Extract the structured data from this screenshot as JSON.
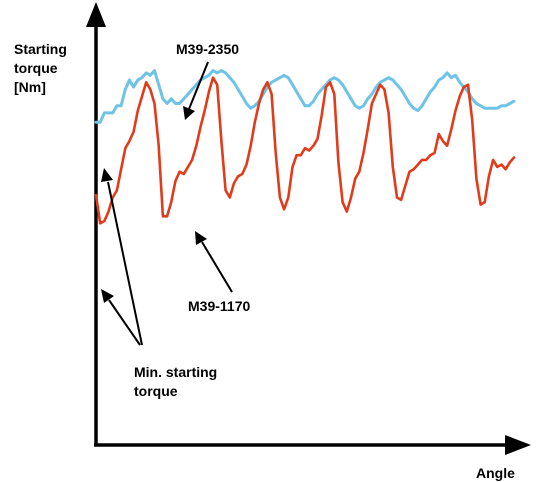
{
  "chart_data": {
    "type": "line",
    "title": "",
    "ylabel": [
      "Starting",
      "torque",
      "[Nm]"
    ],
    "xlabel": "Angle",
    "x_ticks": "none",
    "y_ticks": "none",
    "grid": false,
    "legend": "none",
    "xlim": [
      0,
      100
    ],
    "ylim": [
      0,
      100
    ],
    "series": [
      {
        "name": "M39-2350",
        "color": "#6ec3e6",
        "points": [
          [
            0,
            82
          ],
          [
            1,
            82
          ],
          [
            2,
            86
          ],
          [
            4,
            86
          ],
          [
            5,
            89
          ],
          [
            6,
            89
          ],
          [
            7,
            96
          ],
          [
            8,
            100
          ],
          [
            9,
            97
          ],
          [
            10,
            100
          ],
          [
            11,
            101
          ],
          [
            12,
            103
          ],
          [
            13,
            102
          ],
          [
            14,
            104
          ],
          [
            15,
            98
          ],
          [
            16,
            92
          ],
          [
            17,
            90
          ],
          [
            18,
            92
          ],
          [
            19,
            90
          ],
          [
            20,
            90
          ],
          [
            21,
            92
          ],
          [
            22,
            94
          ],
          [
            23,
            96
          ],
          [
            24,
            98
          ],
          [
            25,
            100
          ],
          [
            26,
            101
          ],
          [
            27,
            102
          ],
          [
            28,
            104
          ],
          [
            29,
            103
          ],
          [
            30,
            104
          ],
          [
            31,
            103
          ],
          [
            32,
            101
          ],
          [
            33,
            99
          ],
          [
            34,
            96
          ],
          [
            35,
            93
          ],
          [
            36,
            90
          ],
          [
            37,
            88
          ],
          [
            38,
            89
          ],
          [
            39,
            91
          ],
          [
            40,
            94
          ],
          [
            41,
            97
          ],
          [
            42,
            99
          ],
          [
            43,
            100
          ],
          [
            44,
            101
          ],
          [
            45,
            102
          ],
          [
            46,
            101
          ],
          [
            47,
            98
          ],
          [
            48,
            95
          ],
          [
            49,
            92
          ],
          [
            50,
            89
          ],
          [
            51,
            89
          ],
          [
            52,
            91
          ],
          [
            53,
            94
          ],
          [
            54,
            96
          ],
          [
            55,
            98
          ],
          [
            56,
            100
          ],
          [
            57,
            101
          ],
          [
            58,
            100
          ],
          [
            59,
            98
          ],
          [
            60,
            95
          ],
          [
            61,
            92
          ],
          [
            62,
            89
          ],
          [
            63,
            88
          ],
          [
            64,
            89
          ],
          [
            65,
            92
          ],
          [
            66,
            94
          ],
          [
            67,
            97
          ],
          [
            68,
            99
          ],
          [
            69,
            100
          ],
          [
            70,
            101
          ],
          [
            71,
            100
          ],
          [
            72,
            98
          ],
          [
            73,
            96
          ],
          [
            74,
            93
          ],
          [
            75,
            90
          ],
          [
            76,
            88
          ],
          [
            77,
            87
          ],
          [
            78,
            89
          ],
          [
            79,
            92
          ],
          [
            80,
            95
          ],
          [
            81,
            97
          ],
          [
            82,
            100
          ],
          [
            83,
            101
          ],
          [
            84,
            103
          ],
          [
            85,
            101
          ],
          [
            86,
            102
          ],
          [
            87,
            99
          ],
          [
            88,
            97
          ],
          [
            89,
            95
          ],
          [
            90,
            92
          ],
          [
            91,
            90
          ],
          [
            92,
            89
          ],
          [
            93,
            88
          ],
          [
            94,
            88
          ],
          [
            95,
            88
          ],
          [
            96,
            88
          ],
          [
            97,
            89
          ],
          [
            98,
            89
          ],
          [
            99,
            90
          ],
          [
            100,
            91
          ]
        ]
      },
      {
        "name": "M39-1170",
        "color": "#e03c1c",
        "points": [
          [
            0,
            51
          ],
          [
            1,
            39
          ],
          [
            2,
            40
          ],
          [
            3,
            44
          ],
          [
            4,
            50
          ],
          [
            5,
            53
          ],
          [
            6,
            62
          ],
          [
            7,
            71
          ],
          [
            8,
            74
          ],
          [
            9,
            78
          ],
          [
            10,
            87
          ],
          [
            11,
            93
          ],
          [
            12,
            99
          ],
          [
            13,
            96
          ],
          [
            14,
            90
          ],
          [
            15,
            72
          ],
          [
            16,
            42
          ],
          [
            17,
            42
          ],
          [
            18,
            48
          ],
          [
            19,
            57
          ],
          [
            20,
            61
          ],
          [
            21,
            60
          ],
          [
            22,
            63
          ],
          [
            23,
            66
          ],
          [
            24,
            72
          ],
          [
            25,
            80
          ],
          [
            26,
            87
          ],
          [
            27,
            95
          ],
          [
            28,
            101
          ],
          [
            29,
            98
          ],
          [
            30,
            74
          ],
          [
            31,
            53
          ],
          [
            32,
            50
          ],
          [
            33,
            56
          ],
          [
            34,
            59
          ],
          [
            35,
            60
          ],
          [
            36,
            64
          ],
          [
            37,
            72
          ],
          [
            38,
            82
          ],
          [
            39,
            90
          ],
          [
            40,
            96
          ],
          [
            41,
            99
          ],
          [
            42,
            94
          ],
          [
            43,
            69
          ],
          [
            44,
            50
          ],
          [
            45,
            45
          ],
          [
            46,
            50
          ],
          [
            47,
            63
          ],
          [
            48,
            68
          ],
          [
            49,
            68
          ],
          [
            50,
            71
          ],
          [
            51,
            70
          ],
          [
            52,
            72
          ],
          [
            53,
            75
          ],
          [
            54,
            85
          ],
          [
            55,
            97
          ],
          [
            56,
            99
          ],
          [
            57,
            94
          ],
          [
            58,
            65
          ],
          [
            59,
            48
          ],
          [
            60,
            44
          ],
          [
            61,
            50
          ],
          [
            62,
            58
          ],
          [
            63,
            61
          ],
          [
            64,
            69
          ],
          [
            65,
            79
          ],
          [
            66,
            90
          ],
          [
            67,
            94
          ],
          [
            68,
            98
          ],
          [
            69,
            96
          ],
          [
            70,
            86
          ],
          [
            71,
            63
          ],
          [
            72,
            50
          ],
          [
            73,
            49
          ],
          [
            74,
            55
          ],
          [
            75,
            61
          ],
          [
            76,
            62
          ],
          [
            77,
            64
          ],
          [
            78,
            66
          ],
          [
            79,
            66
          ],
          [
            80,
            68
          ],
          [
            81,
            69
          ],
          [
            82,
            77
          ],
          [
            83,
            74
          ],
          [
            84,
            72
          ],
          [
            85,
            79
          ],
          [
            86,
            87
          ],
          [
            87,
            93
          ],
          [
            88,
            97
          ],
          [
            89,
            98
          ],
          [
            90,
            83
          ],
          [
            91,
            58
          ],
          [
            92,
            47
          ],
          [
            93,
            48
          ],
          [
            94,
            59
          ],
          [
            95,
            66
          ],
          [
            96,
            63
          ],
          [
            97,
            64
          ],
          [
            98,
            62
          ],
          [
            99,
            65
          ],
          [
            100,
            67
          ]
        ]
      }
    ],
    "annotations": [
      {
        "text": "M39-2350",
        "points_to": {
          "series": "M39-2350",
          "x": 21,
          "y": 90
        }
      },
      {
        "text": "M39-1170",
        "points_to": {
          "series": "M39-1170",
          "x": 25,
          "y": 63
        }
      },
      {
        "text": [
          "Min. starting",
          "torque"
        ],
        "points_to": [
          {
            "series": "M39-2350",
            "x": 0,
            "y": 82
          },
          {
            "series": "M39-1170",
            "x": 1,
            "y": 39
          }
        ]
      }
    ]
  }
}
